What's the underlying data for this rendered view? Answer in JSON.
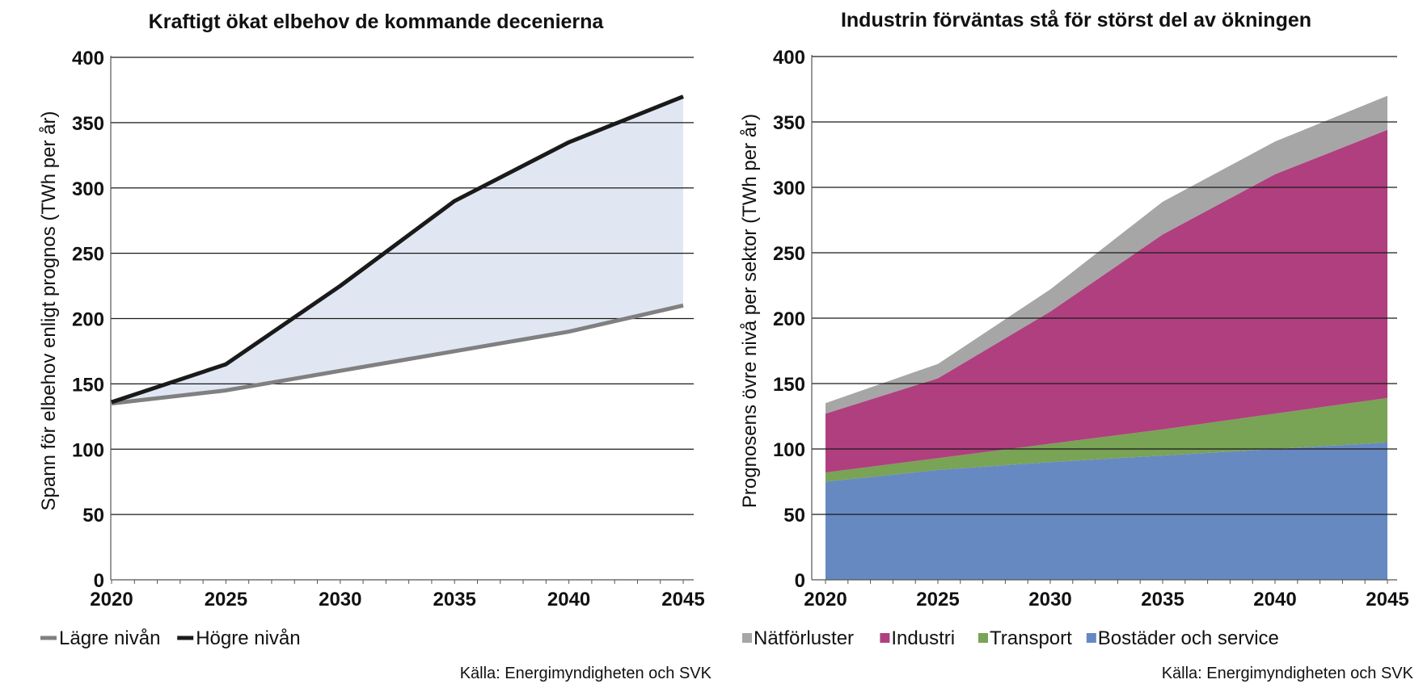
{
  "chart_data": [
    {
      "type": "line",
      "title": "Kraftigt ökat elbehov de kommande decenierna",
      "ylabel": "Spann för elbehov enligt prognos (TWh per år)",
      "xlabel": "",
      "x": [
        2020,
        2025,
        2030,
        2035,
        2040,
        2045
      ],
      "xlim": [
        2020,
        2045
      ],
      "ylim": [
        0,
        400
      ],
      "yticks": [
        0,
        50,
        100,
        150,
        200,
        250,
        300,
        350,
        400
      ],
      "grid": true,
      "legend_position": "bottom-left",
      "band_fill": "#e1e7f2",
      "series": [
        {
          "name": "Lägre nivån",
          "color": "#808080",
          "values": [
            135,
            145,
            160,
            175,
            190,
            210
          ]
        },
        {
          "name": "Högre nivån",
          "color": "#1a1a1a",
          "values": [
            136,
            165,
            225,
            290,
            335,
            370
          ]
        }
      ],
      "source": "Källa: Energimyndigheten och SVK"
    },
    {
      "type": "area",
      "stacked": true,
      "title": "Industrin förväntas stå för störst del av ökningen",
      "ylabel": "Prognosens övre nivå per sektor (TWh per år)",
      "xlabel": "",
      "x": [
        2020,
        2025,
        2030,
        2035,
        2040,
        2045
      ],
      "xlim": [
        2020,
        2045
      ],
      "ylim": [
        0,
        400
      ],
      "yticks": [
        0,
        50,
        100,
        150,
        200,
        250,
        300,
        350,
        400
      ],
      "grid": true,
      "legend_position": "bottom-left",
      "series": [
        {
          "name": "Bostäder och service",
          "color": "#6789c2",
          "values": [
            75,
            84,
            90,
            95,
            100,
            105
          ]
        },
        {
          "name": "Transport",
          "color": "#79a355",
          "values": [
            7,
            9,
            14,
            20,
            27,
            34
          ]
        },
        {
          "name": "Industri",
          "color": "#b03f7f",
          "values": [
            45,
            61,
            101,
            149,
            183,
            205
          ]
        },
        {
          "name": "Nätförluster",
          "color": "#a6a6a6",
          "values": [
            8,
            11,
            17,
            25,
            25,
            26
          ]
        }
      ],
      "legend_order": [
        "Nätförluster",
        "Industri",
        "Transport",
        "Bostäder och service"
      ],
      "source": "Källa: Energimyndigheten och SVK"
    }
  ]
}
